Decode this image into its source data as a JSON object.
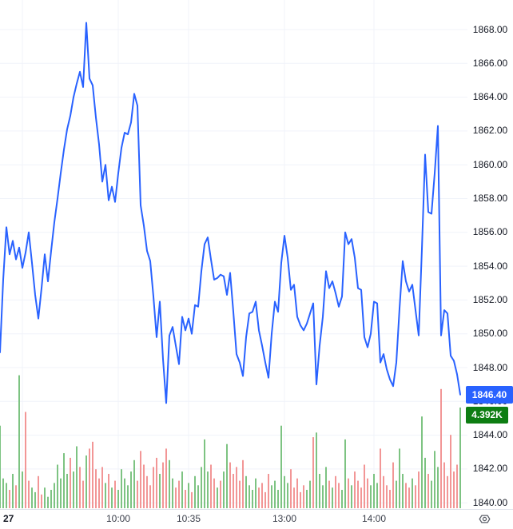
{
  "chart": {
    "last_price_label": "1846.40",
    "last_volume_label": "4.392K"
  },
  "chart_data": {
    "type": "line",
    "title": "",
    "xlabel": "",
    "ylabel": "",
    "legend": "none",
    "grid": true,
    "x_tick_labels": [
      "27",
      "10:00",
      "10:35",
      "13:00",
      "14:00"
    ],
    "x_tick_indices": [
      7,
      37,
      59,
      89,
      117
    ],
    "y_ticks": [
      1840,
      1842,
      1844,
      1846,
      1848,
      1850,
      1852,
      1854,
      1856,
      1858,
      1860,
      1862,
      1864,
      1866,
      1868
    ],
    "ylim": [
      1839.6,
      1869.8
    ],
    "last_price": 1846.4,
    "last_volume_k": 4.392,
    "prices": [
      1848.9,
      1853.2,
      1856.3,
      1854.7,
      1855.5,
      1854.4,
      1855.1,
      1853.9,
      1854.8,
      1856.0,
      1854.2,
      1852.3,
      1850.9,
      1852.7,
      1854.7,
      1853.1,
      1854.9,
      1856.6,
      1858.0,
      1859.5,
      1860.9,
      1862.1,
      1862.9,
      1864.0,
      1864.8,
      1865.5,
      1864.6,
      1868.4,
      1865.1,
      1864.7,
      1862.8,
      1861.2,
      1859.0,
      1860.0,
      1857.9,
      1858.7,
      1857.8,
      1859.5,
      1861.0,
      1861.9,
      1861.8,
      1862.5,
      1864.2,
      1863.5,
      1857.6,
      1856.4,
      1854.9,
      1854.3,
      1852.2,
      1849.8,
      1851.9,
      1848.5,
      1845.9,
      1849.9,
      1850.4,
      1849.3,
      1848.2,
      1851.0,
      1850.2,
      1850.9,
      1850.0,
      1851.7,
      1851.6,
      1853.7,
      1855.3,
      1855.7,
      1854.4,
      1853.2,
      1853.3,
      1853.5,
      1853.4,
      1852.3,
      1853.6,
      1851.3,
      1848.8,
      1848.3,
      1847.5,
      1849.8,
      1851.2,
      1851.3,
      1851.9,
      1850.2,
      1849.3,
      1848.3,
      1847.4,
      1850.0,
      1851.9,
      1851.3,
      1854.2,
      1855.8,
      1854.5,
      1852.6,
      1852.9,
      1851.0,
      1850.5,
      1850.2,
      1850.6,
      1851.2,
      1851.8,
      1847.0,
      1849.3,
      1851.0,
      1853.7,
      1852.7,
      1853.1,
      1852.4,
      1851.6,
      1852.2,
      1856.0,
      1855.3,
      1855.6,
      1854.5,
      1852.7,
      1852.6,
      1849.8,
      1849.2,
      1850.0,
      1851.9,
      1851.8,
      1848.3,
      1848.8,
      1847.9,
      1847.3,
      1846.9,
      1848.3,
      1851.5,
      1854.3,
      1853.1,
      1852.5,
      1852.9,
      1851.4,
      1849.9,
      1855.0,
      1860.6,
      1857.2,
      1857.1,
      1859.5,
      1862.3,
      1849.9,
      1851.4,
      1851.2,
      1848.7,
      1848.4,
      1847.6,
      1846.4
    ],
    "volumes_k": [
      3.6,
      1.3,
      1.1,
      0.8,
      1.5,
      1.0,
      5.8,
      1.6,
      4.2,
      1.2,
      0.9,
      0.7,
      1.4,
      0.6,
      0.9,
      0.5,
      0.8,
      1.1,
      1.9,
      1.3,
      2.4,
      1.5,
      2.2,
      1.6,
      2.7,
      1.8,
      1.2,
      2.3,
      2.6,
      2.9,
      1.7,
      1.3,
      1.8,
      1.1,
      1.5,
      0.9,
      1.2,
      0.8,
      1.7,
      1.3,
      1.0,
      1.6,
      2.1,
      1.2,
      2.5,
      1.9,
      1.4,
      1.0,
      1.8,
      2.2,
      1.5,
      2.0,
      2.6,
      2.1,
      1.3,
      0.9,
      1.2,
      1.6,
      0.8,
      1.1,
      0.7,
      1.4,
      1.0,
      1.8,
      3.0,
      1.6,
      1.9,
      1.3,
      0.9,
      1.2,
      1.6,
      2.8,
      2.0,
      1.5,
      1.8,
      1.2,
      2.1,
      1.4,
      1.0,
      0.8,
      1.3,
      0.9,
      1.1,
      0.7,
      1.5,
      1.0,
      1.2,
      0.8,
      3.6,
      1.4,
      1.1,
      1.7,
      0.9,
      1.3,
      0.7,
      1.0,
      0.8,
      1.2,
      3.1,
      3.3,
      1.5,
      1.0,
      1.8,
      1.2,
      0.9,
      1.4,
      1.1,
      0.8,
      3.0,
      1.3,
      1.0,
      1.6,
      1.2,
      0.9,
      1.9,
      1.3,
      1.0,
      1.5,
      1.1,
      2.6,
      1.4,
      1.0,
      0.8,
      2.0,
      1.2,
      2.6,
      1.5,
      1.1,
      0.9,
      1.3,
      1.0,
      1.6,
      4.0,
      2.2,
      1.5,
      1.2,
      2.5,
      1.8,
      5.2,
      2.0,
      1.4,
      3.2,
      1.6,
      1.9,
      4.392
    ],
    "volume_dirs": "gggrgrggrrggrrggggggggrggrrgrrrrrgrgrggggggrrrrrrrgrrggrrgrgrgggggrrgrggrrrrrggggrrrrggggggrrrrrggrggggrgrrggrgrrrrrgggrrrrrgggrrgrrggrgggrrrrrrg"
  },
  "colors": {
    "background": "#FFFFFF",
    "line": "#2962FF",
    "grid": "#F0F3FA",
    "volume_up": "#7DC382",
    "volume_down": "#F29696",
    "price_badge_bg": "#2962FF",
    "volume_badge_bg": "#0D7D12",
    "axis_text": "#131722",
    "time_text": "#3A3E4A",
    "separator": "#E0E3EB",
    "gear_icon": "#585C66"
  }
}
